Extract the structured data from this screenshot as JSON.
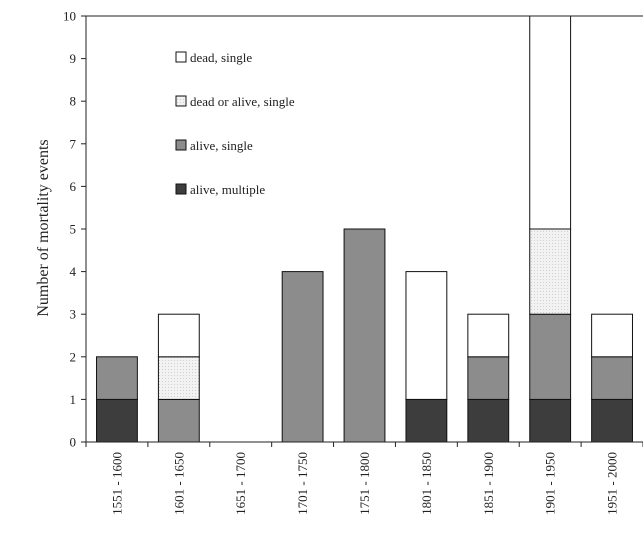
{
  "chart_data": {
    "type": "bar",
    "stacked": true,
    "ylabel": "Number of mortality events",
    "xlabel": "",
    "ylim": [
      0,
      10
    ],
    "yticks": [
      0,
      1,
      2,
      3,
      4,
      5,
      6,
      7,
      8,
      9,
      10
    ],
    "categories": [
      "1551 - 1600",
      "1601 - 1650",
      "1651 - 1700",
      "1701 - 1750",
      "1751 - 1800",
      "1801 - 1850",
      "1851 - 1900",
      "1901 - 1950",
      "1951 - 2000"
    ],
    "series": [
      {
        "name": "alive, multiple",
        "color": "#3d3d3d",
        "values": [
          1,
          0,
          0,
          0,
          0,
          1,
          1,
          1,
          1
        ]
      },
      {
        "name": "alive, single",
        "color": "#8c8c8c",
        "values": [
          1,
          1,
          0,
          4,
          5,
          0,
          1,
          2,
          1
        ]
      },
      {
        "name": "dead or alive, single",
        "color": "#efefef",
        "pattern": "dotted",
        "values": [
          0,
          1,
          0,
          0,
          0,
          0,
          0,
          2,
          0
        ]
      },
      {
        "name": "dead, single",
        "color": "#ffffff",
        "values": [
          0,
          1,
          0,
          0,
          0,
          3,
          1,
          5,
          1
        ]
      }
    ],
    "legend": {
      "placement": "upper-left",
      "order": [
        "dead, single",
        "dead or alive, single",
        "alive, single",
        "alive, multiple"
      ]
    },
    "grid": false
  }
}
